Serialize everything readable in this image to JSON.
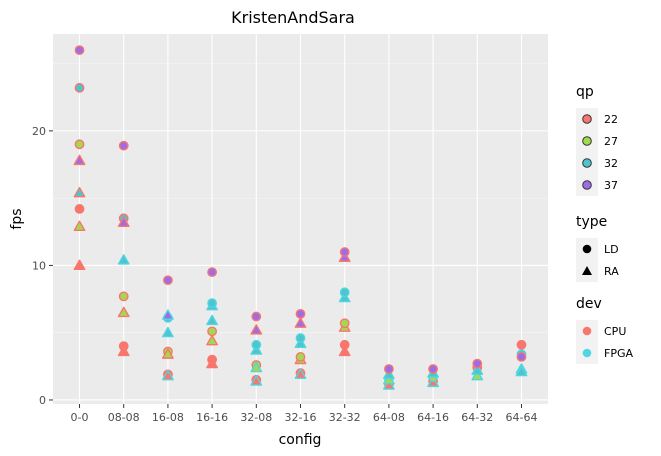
{
  "chart_data": {
    "type": "scatter",
    "title": "KristenAndSara",
    "xlabel": "config",
    "ylabel": "fps",
    "categories": [
      "0-0",
      "08-08",
      "16-08",
      "16-16",
      "32-08",
      "32-16",
      "32-32",
      "64-08",
      "64-16",
      "64-32",
      "64-64"
    ],
    "ylim": [
      -0.3,
      27.2
    ],
    "yticks": [
      0,
      10,
      20
    ],
    "grid": true,
    "legend_position": "right",
    "qp_colors": {
      "22": "#F8766D",
      "27": "#A3D94E",
      "32": "#4FC4CF",
      "37": "#9F6CE8"
    },
    "dev_colors": {
      "CPU": "#F8766D",
      "FPGA": "#4FD6E2"
    },
    "legends": [
      {
        "title": "qp",
        "kind": "qp",
        "entries": [
          "22",
          "27",
          "32",
          "37"
        ]
      },
      {
        "title": "type",
        "kind": "type",
        "entries": [
          "LD",
          "RA"
        ]
      },
      {
        "title": "dev",
        "kind": "dev",
        "entries": [
          "CPU",
          "FPGA"
        ]
      }
    ],
    "points": [
      {
        "config": "0-0",
        "qp": "22",
        "type": "LD",
        "dev": "CPU",
        "fps": 14.2
      },
      {
        "config": "0-0",
        "qp": "27",
        "type": "LD",
        "dev": "CPU",
        "fps": 19.0
      },
      {
        "config": "0-0",
        "qp": "32",
        "type": "LD",
        "dev": "CPU",
        "fps": 23.2
      },
      {
        "config": "0-0",
        "qp": "37",
        "type": "LD",
        "dev": "CPU",
        "fps": 26.0
      },
      {
        "config": "0-0",
        "qp": "22",
        "type": "RA",
        "dev": "CPU",
        "fps": 10.0
      },
      {
        "config": "0-0",
        "qp": "27",
        "type": "RA",
        "dev": "CPU",
        "fps": 12.9
      },
      {
        "config": "0-0",
        "qp": "32",
        "type": "RA",
        "dev": "CPU",
        "fps": 15.4
      },
      {
        "config": "0-0",
        "qp": "37",
        "type": "RA",
        "dev": "CPU",
        "fps": 17.8
      },
      {
        "config": "08-08",
        "qp": "22",
        "type": "LD",
        "dev": "CPU",
        "fps": 4.0
      },
      {
        "config": "08-08",
        "qp": "27",
        "type": "LD",
        "dev": "CPU",
        "fps": 7.7
      },
      {
        "config": "08-08",
        "qp": "32",
        "type": "LD",
        "dev": "CPU",
        "fps": 13.5
      },
      {
        "config": "08-08",
        "qp": "37",
        "type": "LD",
        "dev": "CPU",
        "fps": 18.9
      },
      {
        "config": "08-08",
        "qp": "22",
        "type": "RA",
        "dev": "CPU",
        "fps": 3.6
      },
      {
        "config": "08-08",
        "qp": "27",
        "type": "RA",
        "dev": "CPU",
        "fps": 6.5
      },
      {
        "config": "08-08",
        "qp": "32",
        "type": "RA",
        "dev": "FPGA",
        "fps": 10.4
      },
      {
        "config": "08-08",
        "qp": "37",
        "type": "RA",
        "dev": "CPU",
        "fps": 13.2
      },
      {
        "config": "16-08",
        "qp": "22",
        "type": "LD",
        "dev": "CPU",
        "fps": 1.9
      },
      {
        "config": "16-08",
        "qp": "22",
        "type": "RA",
        "dev": "FPGA",
        "fps": 1.8
      },
      {
        "config": "16-08",
        "qp": "27",
        "type": "LD",
        "dev": "CPU",
        "fps": 3.6
      },
      {
        "config": "16-08",
        "qp": "27",
        "type": "RA",
        "dev": "CPU",
        "fps": 3.4
      },
      {
        "config": "16-08",
        "qp": "32",
        "type": "RA",
        "dev": "FPGA",
        "fps": 5.0
      },
      {
        "config": "16-08",
        "qp": "32",
        "type": "LD",
        "dev": "FPGA",
        "fps": 6.1
      },
      {
        "config": "16-08",
        "qp": "37",
        "type": "RA",
        "dev": "FPGA",
        "fps": 6.3
      },
      {
        "config": "16-08",
        "qp": "37",
        "type": "LD",
        "dev": "CPU",
        "fps": 8.9
      },
      {
        "config": "16-16",
        "qp": "22",
        "type": "LD",
        "dev": "CPU",
        "fps": 3.0
      },
      {
        "config": "16-16",
        "qp": "22",
        "type": "RA",
        "dev": "CPU",
        "fps": 2.7
      },
      {
        "config": "16-16",
        "qp": "27",
        "type": "RA",
        "dev": "CPU",
        "fps": 4.4
      },
      {
        "config": "16-16",
        "qp": "27",
        "type": "LD",
        "dev": "CPU",
        "fps": 5.1
      },
      {
        "config": "16-16",
        "qp": "32",
        "type": "RA",
        "dev": "FPGA",
        "fps": 5.9
      },
      {
        "config": "16-16",
        "qp": "32",
        "type": "RA",
        "dev": "FPGA",
        "fps": 7.0
      },
      {
        "config": "16-16",
        "qp": "32",
        "type": "LD",
        "dev": "FPGA",
        "fps": 7.2
      },
      {
        "config": "16-16",
        "qp": "37",
        "type": "LD",
        "dev": "CPU",
        "fps": 9.5
      },
      {
        "config": "32-08",
        "qp": "22",
        "type": "LD",
        "dev": "CPU",
        "fps": 1.5
      },
      {
        "config": "32-08",
        "qp": "22",
        "type": "RA",
        "dev": "FPGA",
        "fps": 1.4
      },
      {
        "config": "32-08",
        "qp": "27",
        "type": "LD",
        "dev": "CPU",
        "fps": 2.6
      },
      {
        "config": "32-08",
        "qp": "27",
        "type": "RA",
        "dev": "FPGA",
        "fps": 2.4
      },
      {
        "config": "32-08",
        "qp": "32",
        "type": "RA",
        "dev": "FPGA",
        "fps": 3.7
      },
      {
        "config": "32-08",
        "qp": "32",
        "type": "LD",
        "dev": "FPGA",
        "fps": 4.1
      },
      {
        "config": "32-08",
        "qp": "37",
        "type": "RA",
        "dev": "CPU",
        "fps": 5.2
      },
      {
        "config": "32-08",
        "qp": "37",
        "type": "LD",
        "dev": "CPU",
        "fps": 6.2
      },
      {
        "config": "32-16",
        "qp": "22",
        "type": "LD",
        "dev": "CPU",
        "fps": 2.0
      },
      {
        "config": "32-16",
        "qp": "22",
        "type": "RA",
        "dev": "FPGA",
        "fps": 1.9
      },
      {
        "config": "32-16",
        "qp": "27",
        "type": "RA",
        "dev": "CPU",
        "fps": 3.0
      },
      {
        "config": "32-16",
        "qp": "27",
        "type": "LD",
        "dev": "CPU",
        "fps": 3.2
      },
      {
        "config": "32-16",
        "qp": "32",
        "type": "RA",
        "dev": "FPGA",
        "fps": 4.2
      },
      {
        "config": "32-16",
        "qp": "32",
        "type": "LD",
        "dev": "FPGA",
        "fps": 4.6
      },
      {
        "config": "32-16",
        "qp": "37",
        "type": "RA",
        "dev": "CPU",
        "fps": 5.7
      },
      {
        "config": "32-16",
        "qp": "37",
        "type": "LD",
        "dev": "CPU",
        "fps": 6.4
      },
      {
        "config": "32-32",
        "qp": "22",
        "type": "LD",
        "dev": "CPU",
        "fps": 4.1
      },
      {
        "config": "32-32",
        "qp": "22",
        "type": "RA",
        "dev": "CPU",
        "fps": 3.6
      },
      {
        "config": "32-32",
        "qp": "27",
        "type": "RA",
        "dev": "CPU",
        "fps": 5.4
      },
      {
        "config": "32-32",
        "qp": "27",
        "type": "LD",
        "dev": "CPU",
        "fps": 5.7
      },
      {
        "config": "32-32",
        "qp": "32",
        "type": "RA",
        "dev": "FPGA",
        "fps": 7.6
      },
      {
        "config": "32-32",
        "qp": "32",
        "type": "LD",
        "dev": "FPGA",
        "fps": 8.0
      },
      {
        "config": "32-32",
        "qp": "37",
        "type": "RA",
        "dev": "CPU",
        "fps": 10.6
      },
      {
        "config": "32-32",
        "qp": "37",
        "type": "LD",
        "dev": "CPU",
        "fps": 11.0
      },
      {
        "config": "64-08",
        "qp": "22",
        "type": "LD",
        "dev": "CPU",
        "fps": 1.2
      },
      {
        "config": "64-08",
        "qp": "22",
        "type": "RA",
        "dev": "FPGA",
        "fps": 1.1
      },
      {
        "config": "64-08",
        "qp": "27",
        "type": "LD",
        "dev": "FPGA",
        "fps": 1.6
      },
      {
        "config": "64-08",
        "qp": "27",
        "type": "RA",
        "dev": "FPGA",
        "fps": 1.5
      },
      {
        "config": "64-08",
        "qp": "32",
        "type": "RA",
        "dev": "FPGA",
        "fps": 1.9
      },
      {
        "config": "64-08",
        "qp": "37",
        "type": "LD",
        "dev": "CPU",
        "fps": 2.3
      },
      {
        "config": "64-16",
        "qp": "22",
        "type": "LD",
        "dev": "CPU",
        "fps": 1.4
      },
      {
        "config": "64-16",
        "qp": "22",
        "type": "RA",
        "dev": "FPGA",
        "fps": 1.3
      },
      {
        "config": "64-16",
        "qp": "27",
        "type": "LD",
        "dev": "FPGA",
        "fps": 1.7
      },
      {
        "config": "64-16",
        "qp": "32",
        "type": "RA",
        "dev": "FPGA",
        "fps": 2.0
      },
      {
        "config": "64-16",
        "qp": "37",
        "type": "LD",
        "dev": "CPU",
        "fps": 2.3
      },
      {
        "config": "64-32",
        "qp": "22",
        "type": "LD",
        "dev": "CPU",
        "fps": 2.4
      },
      {
        "config": "64-32",
        "qp": "27",
        "type": "RA",
        "dev": "FPGA",
        "fps": 1.8
      },
      {
        "config": "64-32",
        "qp": "32",
        "type": "RA",
        "dev": "FPGA",
        "fps": 2.2
      },
      {
        "config": "64-32",
        "qp": "37",
        "type": "LD",
        "dev": "CPU",
        "fps": 2.7
      },
      {
        "config": "64-64",
        "qp": "22",
        "type": "LD",
        "dev": "CPU",
        "fps": 4.1
      },
      {
        "config": "64-64",
        "qp": "27",
        "type": "RA",
        "dev": "FPGA",
        "fps": 2.3
      },
      {
        "config": "64-64",
        "qp": "32",
        "type": "RA",
        "dev": "FPGA",
        "fps": 2.1
      },
      {
        "config": "64-64",
        "qp": "32",
        "type": "LD",
        "dev": "FPGA",
        "fps": 3.4
      },
      {
        "config": "64-64",
        "qp": "37",
        "type": "LD",
        "dev": "CPU",
        "fps": 3.2
      }
    ]
  }
}
